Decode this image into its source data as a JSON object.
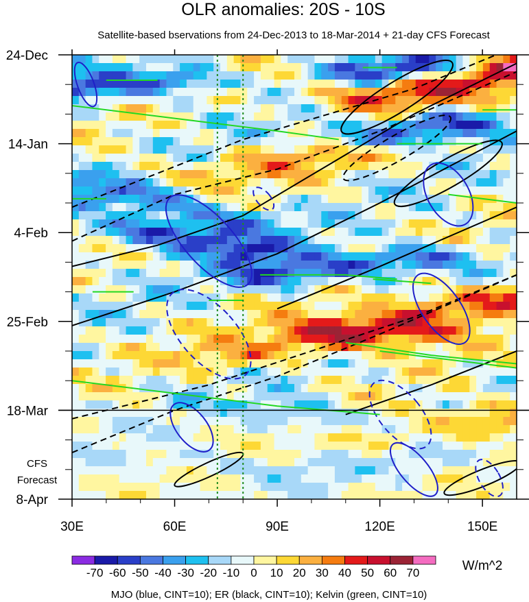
{
  "chart_data": {
    "type": "heatmap",
    "title": "OLR anomalies: 20S - 10S",
    "subtitle": "Satellite-based bservations from 24-Dec-2013 to 18-Mar-2014 + 21-day CFS Forecast",
    "x_ticks": [
      {
        "value": 30,
        "label": "30E"
      },
      {
        "value": 60,
        "label": "60E"
      },
      {
        "value": 90,
        "label": "90E"
      },
      {
        "value": 120,
        "label": "120E"
      },
      {
        "value": 150,
        "label": "150E"
      }
    ],
    "xlim": [
      30,
      160
    ],
    "y_ticks": [
      {
        "day": 0,
        "label": "24-Dec"
      },
      {
        "day": 21,
        "label": "14-Jan"
      },
      {
        "day": 42,
        "label": "4-Feb"
      },
      {
        "day": 63,
        "label": "25-Feb"
      },
      {
        "day": 84,
        "label": "18-Mar"
      },
      {
        "day": 105,
        "label": "8-Apr"
      }
    ],
    "ylim": [
      "24-Dec-2013",
      "8-Apr-2014"
    ],
    "forecast_start": "18-Mar",
    "forecast_label": [
      "CFS",
      "Forecast"
    ],
    "reference_lines_lon": [
      72.5,
      80
    ],
    "colorbar": {
      "labels": [
        "-70",
        "-60",
        "-50",
        "-40",
        "-30",
        "-20",
        "-10",
        "0",
        "10",
        "20",
        "30",
        "40",
        "50",
        "60",
        "70"
      ],
      "levels": [
        -70,
        -60,
        -50,
        -40,
        -30,
        -20,
        -10,
        0,
        10,
        20,
        30,
        40,
        50,
        60,
        70
      ],
      "colors": [
        "#8b2be2",
        "#1a1aa8",
        "#2a3fc8",
        "#4a78e0",
        "#3aa0ee",
        "#1ec0f0",
        "#a8d8f8",
        "#e8f8fa",
        "#fff6a0",
        "#fdd835",
        "#fbb040",
        "#f57c10",
        "#e41a1a",
        "#c8102e",
        "#9b2335",
        "#f46cc0"
      ],
      "units": "W/m^2"
    },
    "contour_note": "MJO (blue, CINT=10); ER (black, CINT=10); Kelvin (green, CINT=10)",
    "series": [
      {
        "name": "MJO",
        "color": "#1f1fc8"
      },
      {
        "name": "ER",
        "color": "#000000"
      },
      {
        "name": "Kelvin",
        "color": "#22d822"
      }
    ],
    "ridges_positive": [
      {
        "lon": [
          120,
          133,
          145,
          158
        ],
        "day": [
          10,
          8,
          6,
          3
        ],
        "value": 55
      },
      {
        "lon": [
          110,
          125,
          140,
          158
        ],
        "day": [
          65,
          63,
          60,
          57
        ],
        "value": 50
      },
      {
        "lon": [
          125,
          140,
          158
        ],
        "day": [
          90,
          88,
          86
        ],
        "value": 55
      },
      {
        "lon": [
          70,
          85,
          100,
          115
        ],
        "day": [
          28,
          26,
          24,
          22
        ],
        "value": 25
      },
      {
        "lon": [
          80,
          100,
          125
        ],
        "day": [
          71,
          68,
          66
        ],
        "value": 30
      }
    ],
    "ridges_negative": [
      {
        "lon": [
          120,
          130,
          140
        ],
        "day": [
          20,
          18,
          16
        ],
        "value": -60
      },
      {
        "lon": [
          55,
          70,
          80
        ],
        "day": [
          42,
          44,
          46
        ],
        "value": -55
      },
      {
        "lon": [
          90,
          110,
          130
        ],
        "day": [
          52,
          50,
          48
        ],
        "value": -50
      },
      {
        "lon": [
          30,
          45,
          60
        ],
        "day": [
          8,
          7,
          6
        ],
        "value": -45
      },
      {
        "lon": [
          120,
          130
        ],
        "day": [
          4,
          3
        ],
        "value": -55
      },
      {
        "lon": [
          30,
          45,
          60,
          75
        ],
        "day": [
          30,
          33,
          36,
          39
        ],
        "value": -35
      },
      {
        "lon": [
          95,
          110,
          125
        ],
        "day": [
          85,
          87,
          89
        ],
        "value": -40
      },
      {
        "lon": [
          60,
          80,
          100
        ],
        "day": [
          95,
          97,
          99
        ],
        "value": -15
      },
      {
        "lon": [
          130,
          140,
          150
        ],
        "day": [
          95,
          94,
          93
        ],
        "value": -15
      }
    ]
  }
}
